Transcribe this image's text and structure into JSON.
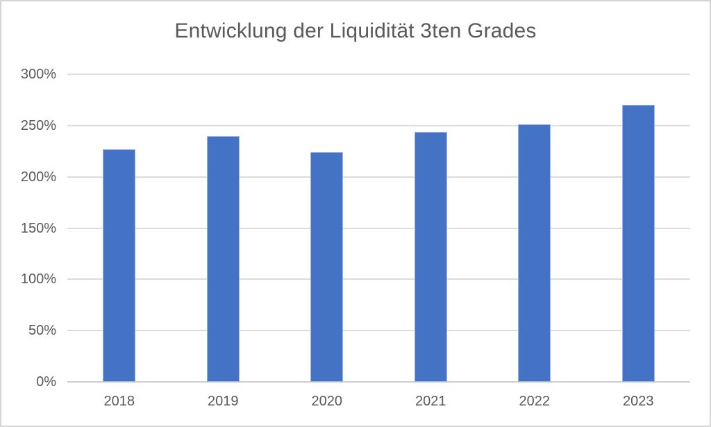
{
  "chart_data": {
    "type": "bar",
    "title": "Entwicklung der Liquidität 3ten Grades",
    "categories": [
      "2018",
      "2019",
      "2020",
      "2021",
      "2022",
      "2023"
    ],
    "values": [
      227,
      240,
      224,
      244,
      251,
      270
    ],
    "unit": "%",
    "xlabel": "",
    "ylabel": "",
    "ylim": [
      0,
      300
    ],
    "yticks": [
      {
        "value": 0,
        "label": "0%"
      },
      {
        "value": 50,
        "label": "50%"
      },
      {
        "value": 100,
        "label": "100%"
      },
      {
        "value": 150,
        "label": "150%"
      },
      {
        "value": 200,
        "label": "200%"
      },
      {
        "value": 250,
        "label": "250%"
      },
      {
        "value": 300,
        "label": "300%"
      }
    ],
    "grid": true,
    "legend": false
  },
  "colors": {
    "bar_fill": "#4472C4",
    "bar_border": "#9FB5E4",
    "gridline": "#DCDCDC",
    "axis_line": "#CFCFCF",
    "text": "#595959",
    "frame_border": "#D5D5D5",
    "background": "#FFFFFF"
  }
}
